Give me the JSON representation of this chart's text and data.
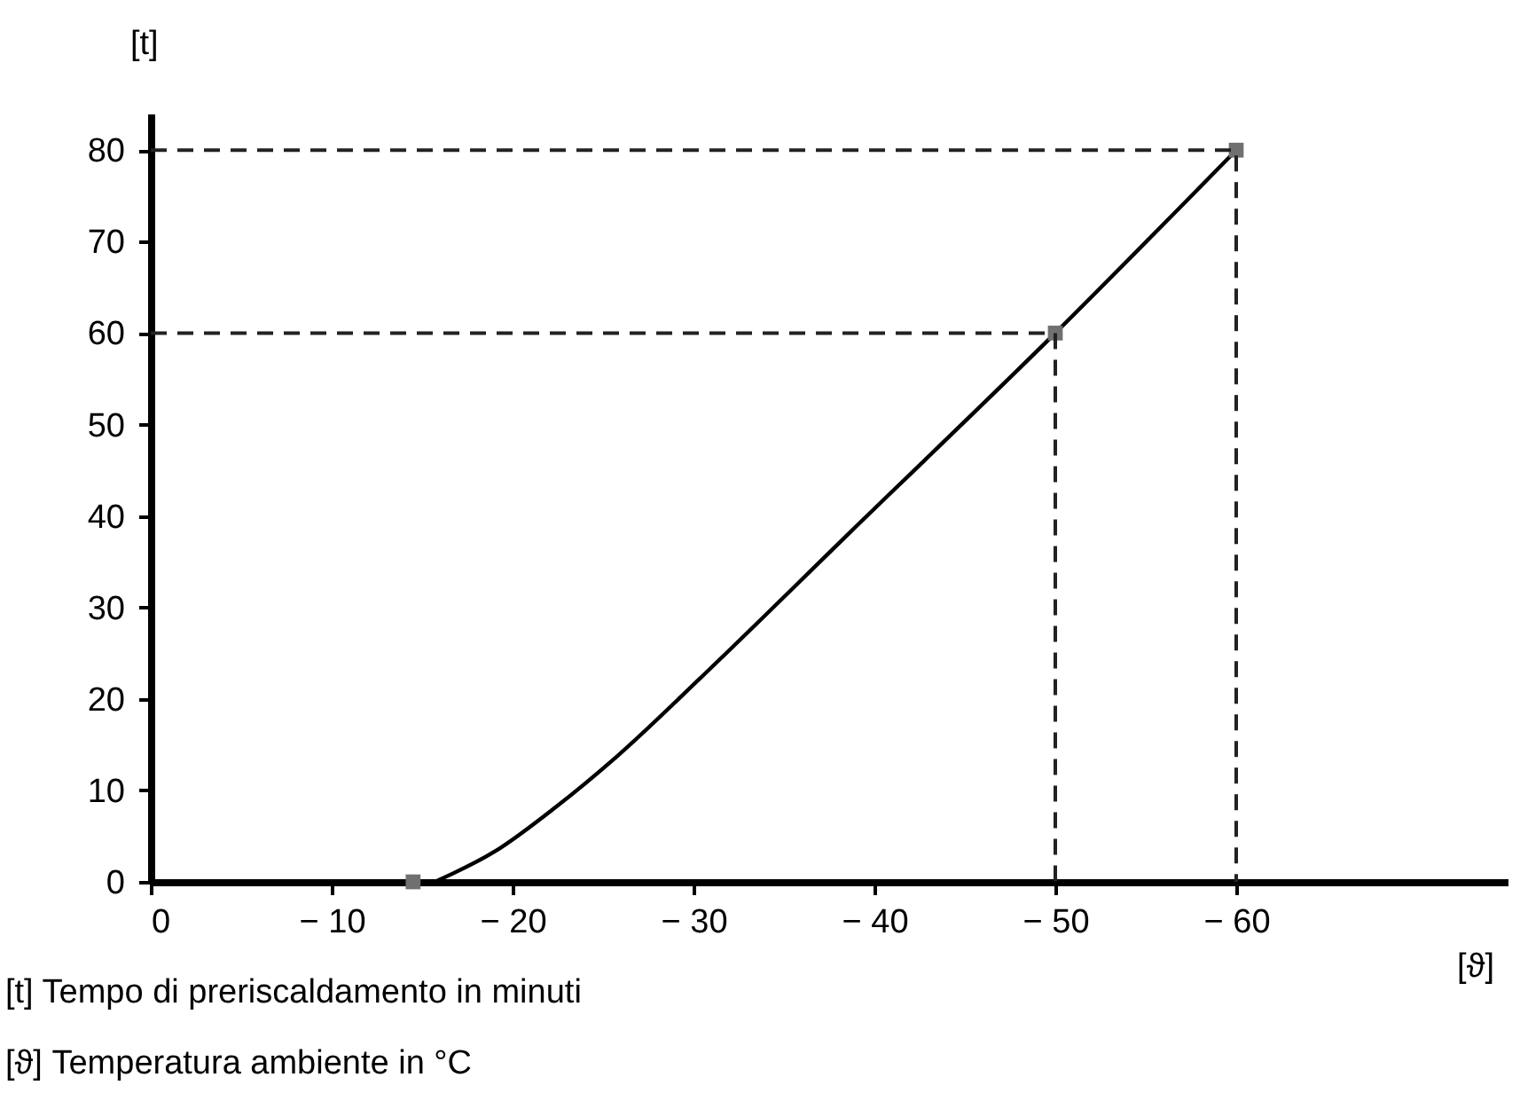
{
  "chart_data": {
    "type": "line",
    "xlabel": "[ϑ]",
    "ylabel": "[t]",
    "xlim": [
      0,
      -75
    ],
    "ylim": [
      0,
      84
    ],
    "xticks": [
      0,
      {
        "value": -10,
        "label": "− 10"
      },
      {
        "value": -20,
        "label": "− 20"
      },
      {
        "value": -30,
        "label": "− 30"
      },
      {
        "value": -40,
        "label": "− 40"
      },
      {
        "value": -50,
        "label": "− 50"
      },
      {
        "value": -60,
        "label": "− 60"
      }
    ],
    "yticks": [
      0,
      10,
      20,
      30,
      40,
      50,
      60,
      70,
      80
    ],
    "grid": false,
    "series": [
      {
        "type": "line",
        "color": "#000000",
        "marker": "none",
        "line_style": "solid",
        "x": [
          -15.7,
          -19,
          -22.4,
          -25.7,
          -30.6,
          -38.7,
          -50,
          -60
        ],
        "values": [
          0,
          3.3,
          8.2,
          13.6,
          22.7,
          38.3,
          60,
          80
        ]
      },
      {
        "type": "scatter",
        "color": "#707070",
        "marker": "square",
        "x": [
          -14.5,
          -50,
          -60
        ],
        "values": [
          0,
          60,
          80
        ]
      },
      {
        "type": "line",
        "color": "#222222",
        "marker": "none",
        "line_style": "dashed",
        "x": [
          0,
          -50,
          -50
        ],
        "values": [
          60,
          60,
          0
        ]
      },
      {
        "type": "line",
        "color": "#222222",
        "marker": "none",
        "line_style": "dashed",
        "x": [
          0,
          -60,
          -60
        ],
        "values": [
          80,
          80,
          0
        ]
      }
    ],
    "annotations": [
      "[t]     Tempo di preriscaldamento in minuti",
      "[ϑ]     Temperatura ambiente in °C"
    ]
  }
}
